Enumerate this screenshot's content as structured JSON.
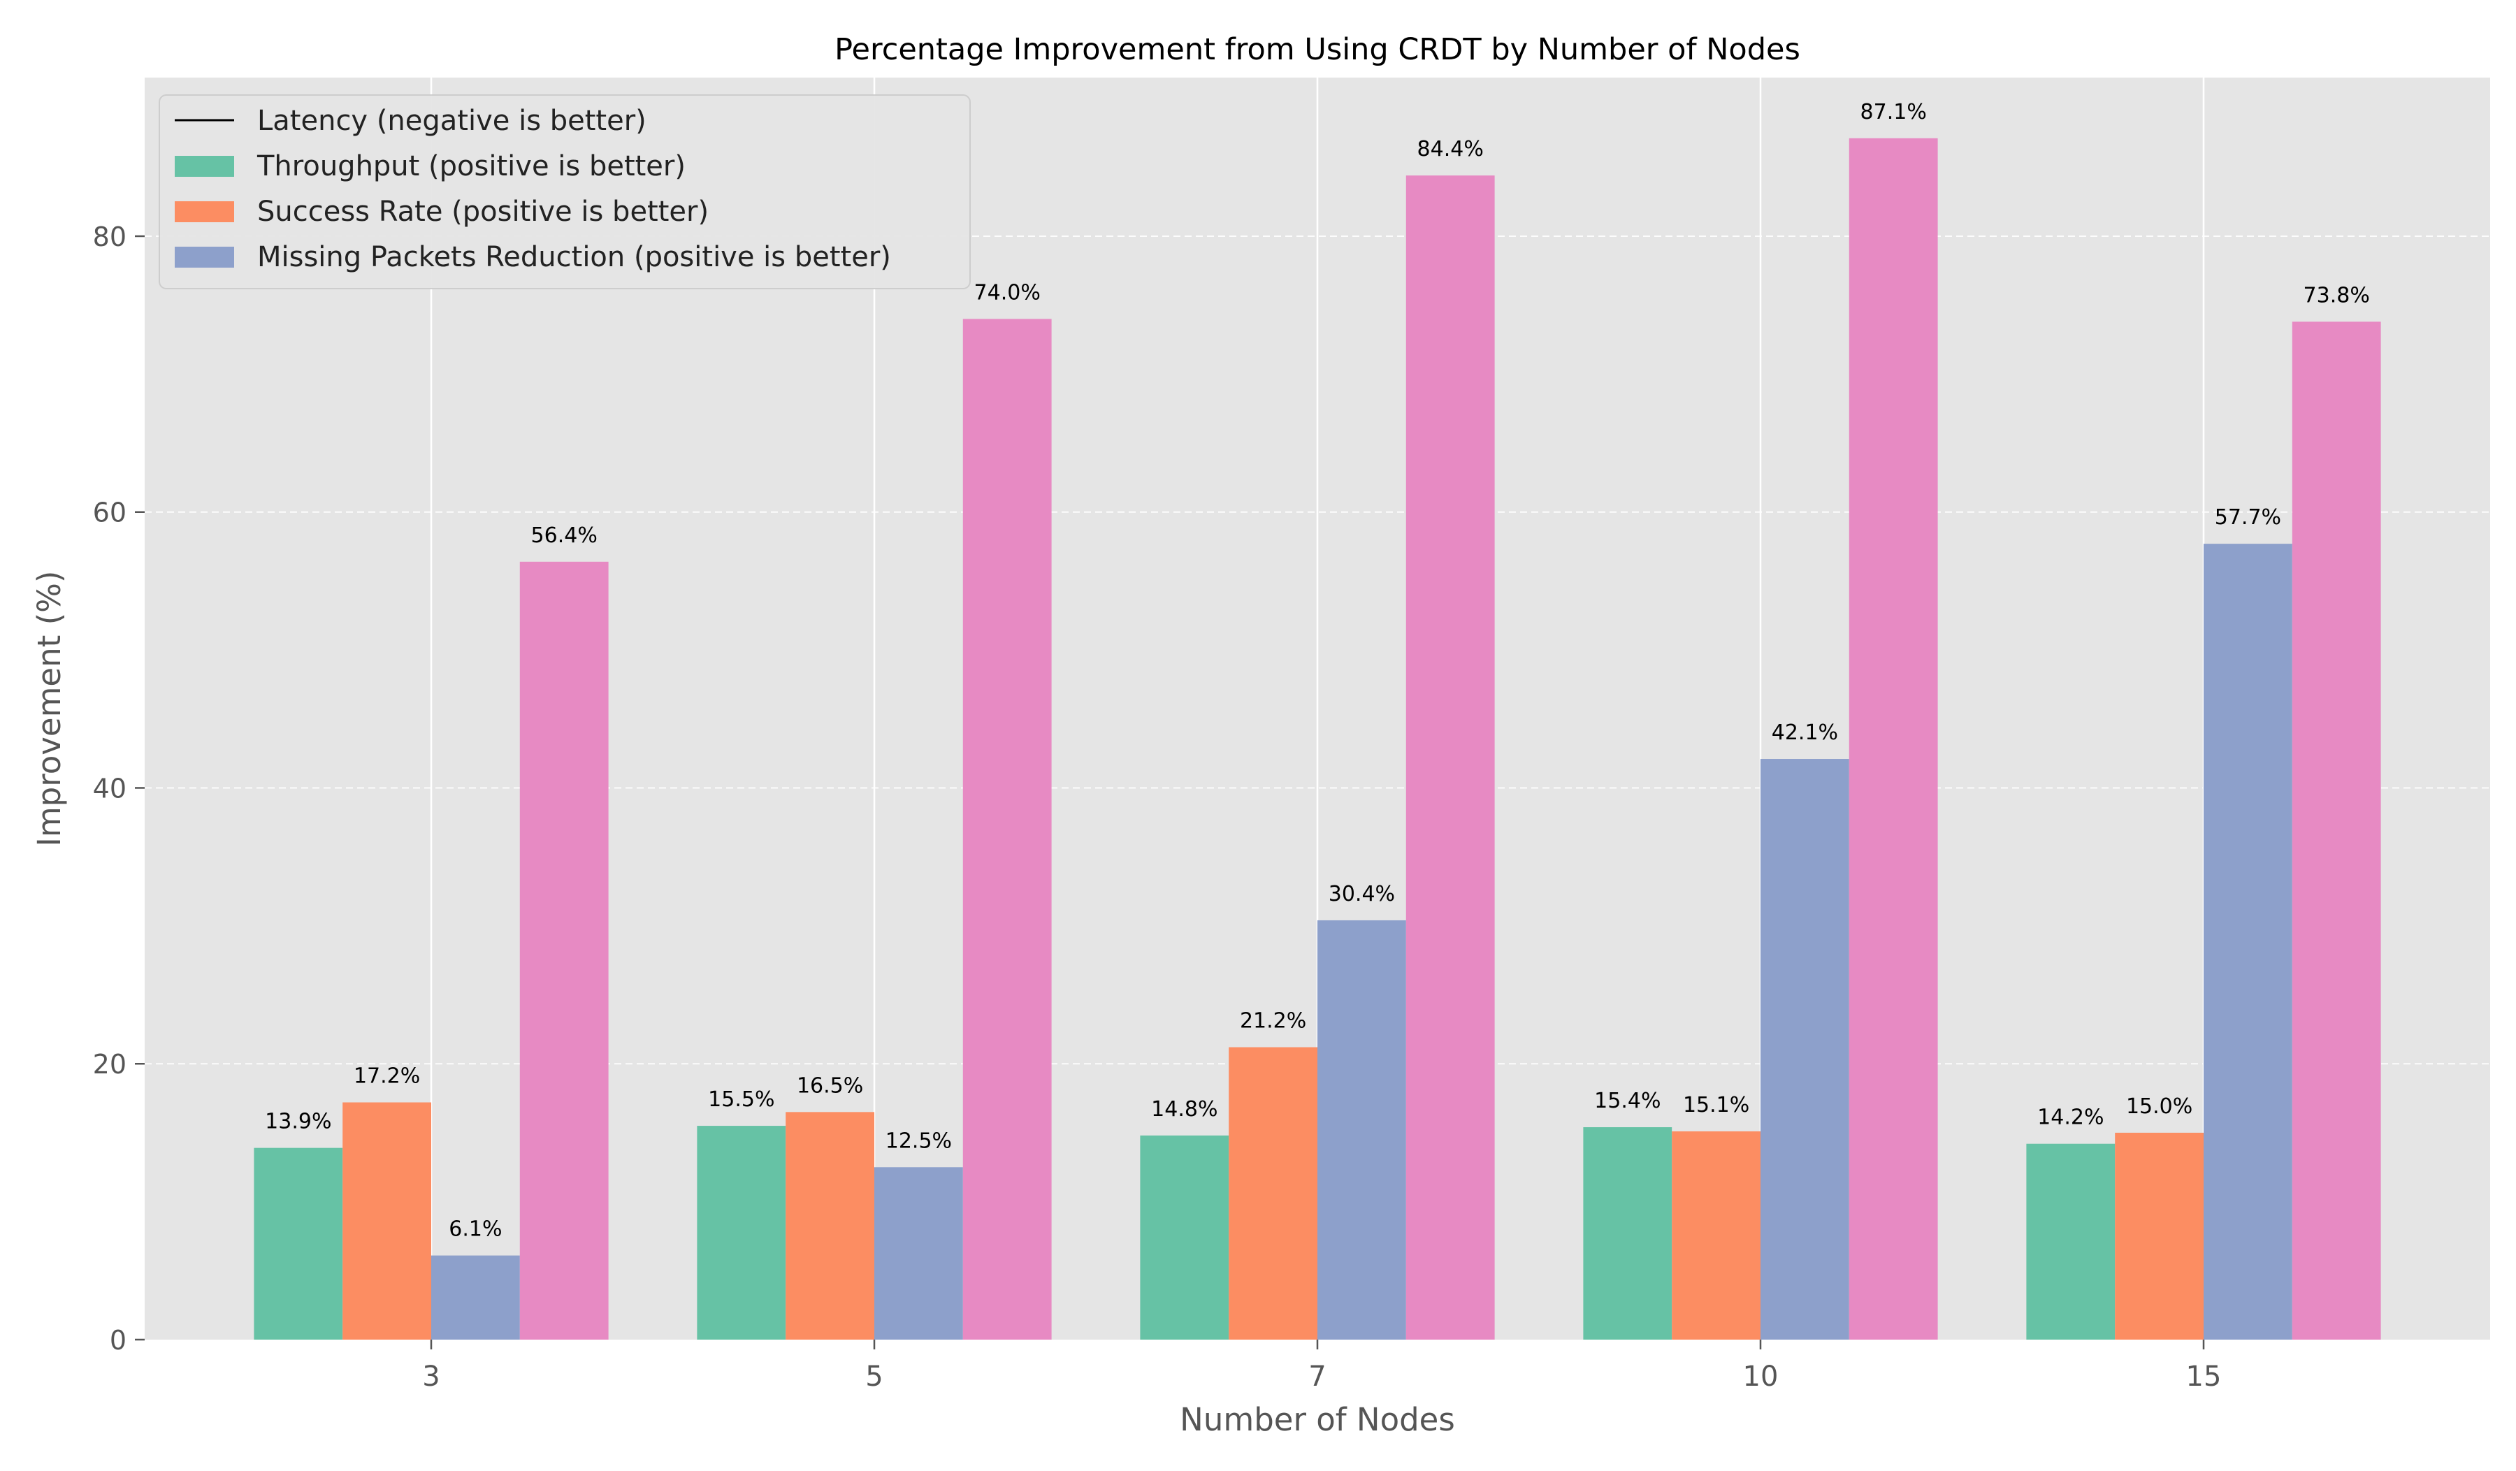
{
  "chart_data": {
    "type": "bar",
    "title": "Percentage Improvement from Using CRDT by Number of Nodes",
    "xlabel": "Number of Nodes",
    "ylabel": "Improvement (%)",
    "categories": [
      "3",
      "5",
      "7",
      "10",
      "15"
    ],
    "ylim": [
      0,
      91.5
    ],
    "yticks": [
      0,
      20,
      40,
      60,
      80
    ],
    "grid": true,
    "legend_position": "top-left",
    "series": [
      {
        "name": "Latency (negative is better)",
        "color": "#000000",
        "legend_style": "line",
        "values": null
      },
      {
        "name": "Throughput (positive is better)",
        "color": "#66c2a5",
        "values": [
          13.9,
          15.5,
          14.8,
          15.4,
          14.2
        ]
      },
      {
        "name": "Success Rate (positive is better)",
        "color": "#fc8d62",
        "values": [
          17.2,
          16.5,
          21.2,
          15.1,
          15.0
        ]
      },
      {
        "name": "Missing Packets Reduction (positive is better)",
        "color": "#8da0cb",
        "values": [
          6.1,
          12.5,
          30.4,
          42.1,
          57.7
        ]
      },
      {
        "name": "",
        "color": "#e78ac3",
        "values": [
          56.4,
          74.0,
          84.4,
          87.1,
          73.8
        ]
      }
    ],
    "data_labels": [
      [
        "13.9%",
        "15.5%",
        "14.8%",
        "15.4%",
        "14.2%"
      ],
      [
        "17.2%",
        "16.5%",
        "21.2%",
        "15.1%",
        "15.0%"
      ],
      [
        "6.1%",
        "12.5%",
        "30.4%",
        "42.1%",
        "57.7%"
      ],
      [
        "56.4%",
        "74.0%",
        "84.4%",
        "87.1%",
        "73.8%"
      ]
    ],
    "colors": {
      "plot_background": "#e5e5e5",
      "grid": "#ffffff",
      "axis_text": "#555555"
    }
  }
}
